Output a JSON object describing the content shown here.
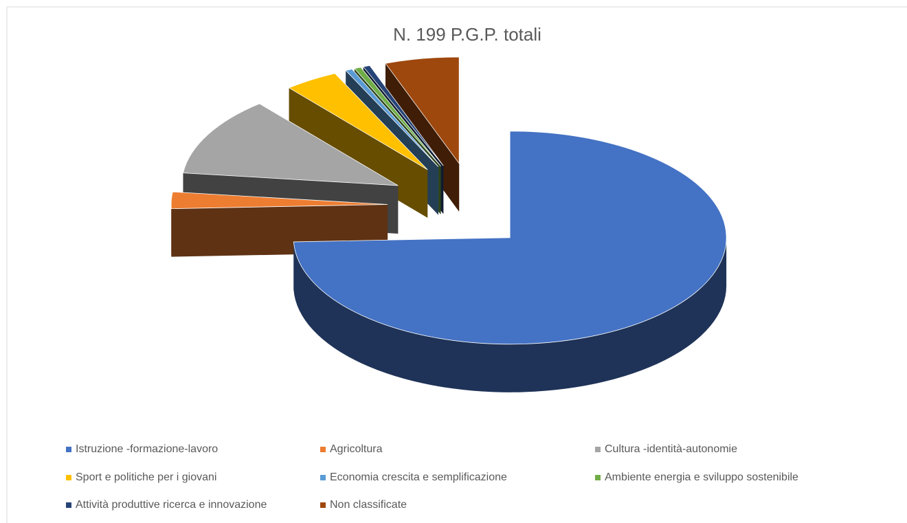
{
  "chart_data": {
    "type": "pie3d",
    "title": "N. 199 P.G.P. totali",
    "categories": [
      "Istruzione -formazione-lavoro",
      "Agricoltura",
      "Cultura -identità-autonomie",
      "Sport e politiche per i giovani",
      "Economia crescita e semplificazione",
      "Ambiente energia e sviluppo sostenibile",
      "Attività produttive ricerca e innovazione",
      "Non classificate"
    ],
    "values": [
      148,
      5,
      24,
      8,
      1,
      1,
      1,
      11
    ],
    "colors": [
      "#4472c4",
      "#ed7d31",
      "#a5a5a5",
      "#ffc000",
      "#5b9bd5",
      "#70ad47",
      "#264478",
      "#9e480e"
    ],
    "legend": "bottom"
  }
}
